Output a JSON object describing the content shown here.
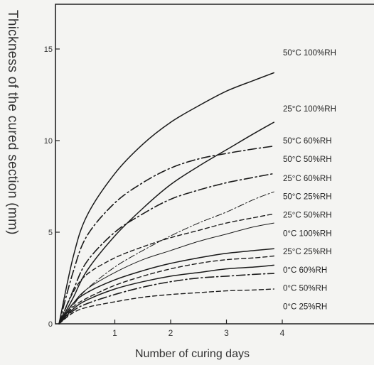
{
  "chart_data": {
    "type": "line",
    "xlabel": "Number of curing days",
    "ylabel": "Thickness of the cured section (mm)",
    "xlim": [
      0,
      4.6
    ],
    "ylim": [
      0,
      17.5
    ],
    "xticks": [
      1,
      2,
      3,
      4
    ],
    "yticks": [
      0,
      5,
      10,
      15
    ],
    "ytick_labels": [
      "0",
      "5",
      "10",
      "15"
    ],
    "grid": false,
    "series": [
      {
        "name": "50°C  100%RH",
        "dash": "solid",
        "x": [
          0,
          0.25,
          0.5,
          1,
          1.5,
          2,
          2.5,
          3,
          3.5,
          3.85
        ],
        "y": [
          0,
          3.6,
          5.9,
          8.2,
          9.8,
          11.0,
          11.9,
          12.7,
          13.3,
          13.7
        ]
      },
      {
        "name": "25°C  100%RH",
        "dash": "solid",
        "x": [
          0,
          0.25,
          0.5,
          1,
          1.5,
          2,
          2.5,
          3,
          3.5,
          3.85
        ],
        "y": [
          0,
          1.4,
          2.9,
          4.8,
          6.3,
          7.6,
          8.6,
          9.5,
          10.4,
          11.0
        ]
      },
      {
        "name": "50°C  60%RH",
        "dash": "dashdot",
        "x": [
          0,
          0.25,
          0.5,
          1,
          1.5,
          2,
          2.5,
          3,
          3.5,
          3.85
        ],
        "y": [
          0,
          2.8,
          4.8,
          6.6,
          7.7,
          8.5,
          9.0,
          9.3,
          9.55,
          9.7
        ]
      },
      {
        "name": "50°C  50%RH",
        "dash": "dashdot",
        "x": [
          0,
          0.25,
          0.5,
          1,
          1.5,
          2,
          2.5,
          3,
          3.5,
          3.85
        ],
        "y": [
          0,
          1.8,
          3.4,
          5.0,
          6.0,
          6.8,
          7.3,
          7.7,
          8.0,
          8.2
        ]
      },
      {
        "name": "25°C  60%RH",
        "dash": "dashdotthin",
        "x": [
          0,
          0.25,
          0.5,
          1,
          1.5,
          2,
          2.5,
          3,
          3.5,
          3.85
        ],
        "y": [
          0,
          1.0,
          1.9,
          3.1,
          4.0,
          4.8,
          5.5,
          6.1,
          6.8,
          7.2
        ]
      },
      {
        "name": "50°C  25%RH",
        "dash": "dashed",
        "x": [
          0,
          0.25,
          0.5,
          1,
          1.5,
          2,
          2.5,
          3,
          3.5,
          3.85
        ],
        "y": [
          0,
          1.7,
          2.7,
          3.6,
          4.2,
          4.7,
          5.1,
          5.5,
          5.8,
          6.0
        ]
      },
      {
        "name": "25°C  50%RH",
        "dash": "solidthin",
        "x": [
          0,
          0.25,
          0.5,
          1,
          1.5,
          2,
          2.5,
          3,
          3.5,
          3.85
        ],
        "y": [
          0,
          1.1,
          1.9,
          2.8,
          3.5,
          4.0,
          4.5,
          4.9,
          5.3,
          5.5
        ]
      },
      {
        "name": "0°C  100%RH",
        "dash": "solid",
        "x": [
          0,
          0.25,
          0.5,
          1,
          1.5,
          2,
          2.5,
          3,
          3.5,
          3.85
        ],
        "y": [
          0,
          1.1,
          1.7,
          2.4,
          2.9,
          3.3,
          3.6,
          3.85,
          4.0,
          4.1
        ]
      },
      {
        "name": "25°C  25%RH",
        "dash": "dashed",
        "x": [
          0,
          0.25,
          0.5,
          1,
          1.5,
          2,
          2.5,
          3,
          3.5,
          3.85
        ],
        "y": [
          0,
          0.9,
          1.4,
          2.1,
          2.6,
          3.0,
          3.3,
          3.5,
          3.6,
          3.7
        ]
      },
      {
        "name": "0°C  60%RH",
        "dash": "solid",
        "x": [
          0,
          0.25,
          0.5,
          1,
          1.5,
          2,
          2.5,
          3,
          3.5,
          3.85
        ],
        "y": [
          0,
          0.8,
          1.3,
          1.9,
          2.3,
          2.6,
          2.8,
          3.0,
          3.1,
          3.2
        ]
      },
      {
        "name": "0°C  50%RH",
        "dash": "dashdot",
        "x": [
          0,
          0.25,
          0.5,
          1,
          1.5,
          2,
          2.5,
          3,
          3.5,
          3.85
        ],
        "y": [
          0,
          0.7,
          1.1,
          1.6,
          2.0,
          2.3,
          2.5,
          2.6,
          2.7,
          2.75
        ]
      },
      {
        "name": "0°C  25%RH",
        "dash": "dashed",
        "x": [
          0,
          0.25,
          0.5,
          1,
          1.5,
          2,
          2.5,
          3,
          3.5,
          3.85
        ],
        "y": [
          0,
          0.6,
          0.9,
          1.2,
          1.45,
          1.6,
          1.7,
          1.8,
          1.85,
          1.9
        ]
      }
    ],
    "label_y": [
      14.8,
      11.75,
      10.0,
      9.0,
      7.95,
      6.95,
      5.95,
      4.95,
      3.95,
      2.95,
      1.95,
      0.95
    ]
  },
  "colors": {
    "line": "#1a1a1a",
    "axis": "#222222",
    "background": "#f4f4f2"
  }
}
